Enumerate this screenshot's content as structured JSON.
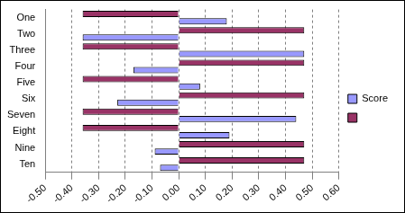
{
  "chart_data": {
    "type": "bar",
    "orientation": "horizontal",
    "categories": [
      "One",
      "Two",
      "Three",
      "Four",
      "Five",
      "Six",
      "Seven",
      "Eight",
      "Nine",
      "Ten"
    ],
    "series": [
      {
        "name": "Score",
        "color": "#9999ff",
        "values": [
          0.18,
          -0.36,
          0.47,
          -0.17,
          0.08,
          -0.23,
          0.44,
          0.19,
          -0.09,
          -0.07
        ]
      },
      {
        "color": "#993366",
        "values": [
          -0.36,
          0.47,
          -0.36,
          0.47,
          -0.36,
          0.47,
          -0.36,
          -0.36,
          0.47,
          0.47
        ]
      }
    ],
    "xlim": [
      -0.5,
      0.6
    ],
    "xticks": [
      {
        "value": -0.5,
        "label": "-0.50"
      },
      {
        "value": -0.4,
        "label": "-0.40"
      },
      {
        "value": -0.3,
        "label": "-0.30"
      },
      {
        "value": -0.2,
        "label": "-0.20"
      },
      {
        "value": -0.1,
        "label": "-0.10"
      },
      {
        "value": 0,
        "label": "0.00"
      },
      {
        "value": 0.1,
        "label": "0.10"
      },
      {
        "value": 0.2,
        "label": "0.20"
      },
      {
        "value": 0.3,
        "label": "0.30"
      },
      {
        "value": 0.4,
        "label": "0.40"
      },
      {
        "value": 0.5,
        "label": "0.50"
      },
      {
        "value": 0.6,
        "label": "0.60"
      }
    ],
    "grid": true,
    "legend": "right"
  }
}
